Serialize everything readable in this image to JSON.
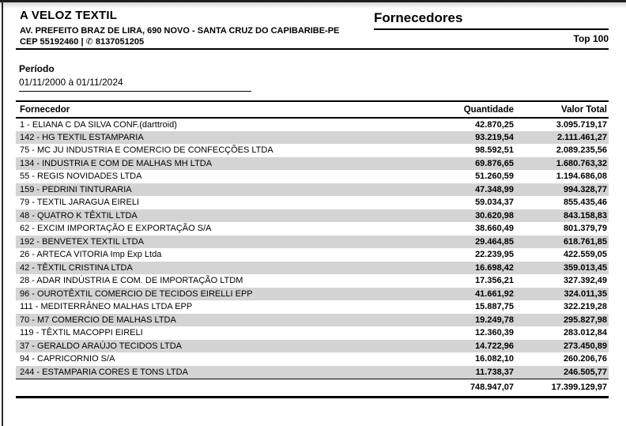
{
  "company": {
    "name": "A VELOZ TEXTIL",
    "address": "AV. PREFEITO BRAZ DE LIRA, 690 NOVO - SANTA CRUZ DO CAPIBARIBE-PE",
    "cep": "CEP 55192460",
    "separator": "|",
    "phone_icon": "✆",
    "phone": "8137051205"
  },
  "report": {
    "title": "Fornecedores",
    "badge": "Top 100"
  },
  "period": {
    "label": "Período",
    "value": "01/11/2000 à 01/11/2024"
  },
  "table": {
    "columns": [
      "Fornecedor",
      "Quantidade",
      "Valor Total"
    ],
    "rows": [
      {
        "name": "1 - ELIANA C DA SILVA CONF.(darttroid)",
        "quantity": "42.870,25",
        "total": "3.095.719,17"
      },
      {
        "name": "142 - HG TEXTIL ESTAMPARIA",
        "quantity": "93.219,54",
        "total": "2.111.461,27"
      },
      {
        "name": "75 - MC JU INDUSTRIA E COMERCIO DE CONFECÇÕES LTDA",
        "quantity": "98.592,51",
        "total": "2.089.235,56"
      },
      {
        "name": "134 - INDUSTRIA E COM DE MALHAS MH LTDA",
        "quantity": "69.876,65",
        "total": "1.680.763,32"
      },
      {
        "name": "55 - REGIS NOVIDADES LTDA",
        "quantity": "51.260,59",
        "total": "1.194.686,08"
      },
      {
        "name": "159 - PEDRINI TINTURARIA",
        "quantity": "47.348,99",
        "total": "994.328,77"
      },
      {
        "name": "79 - TEXTIL JARAGUA EIRELI",
        "quantity": "59.034,37",
        "total": "855.435,46"
      },
      {
        "name": "48 - QUATRO K TÊXTIL LTDA",
        "quantity": "30.620,98",
        "total": "843.158,83"
      },
      {
        "name": "62 - EXCIM IMPORTAÇÃO E EXPORTAÇÃO S/A",
        "quantity": "38.660,49",
        "total": "801.379,79"
      },
      {
        "name": "192 - BENVETEX TEXTIL LTDA",
        "quantity": "29.464,85",
        "total": "618.761,85"
      },
      {
        "name": "26 - ARTECA VITORIA Imp Exp Ltda",
        "quantity": "22.239,95",
        "total": "422.559,05"
      },
      {
        "name": "42 - TÊXTIL CRISTINA LTDA",
        "quantity": "16.698,42",
        "total": "359.013,45"
      },
      {
        "name": "28 - ADAR INDÚSTRIA E COM. DE IMPORTAÇÃO LTDM",
        "quantity": "17.356,21",
        "total": "327.392,49"
      },
      {
        "name": "96 - OUROTÊXTIL COMERCIO DE TECIDOS EIRELLI EPP",
        "quantity": "41.661,92",
        "total": "324.011,35"
      },
      {
        "name": "111 - MEDITERRÂNEO MALHAS LTDA EPP",
        "quantity": "15.887,75",
        "total": "322.219,28"
      },
      {
        "name": "70 - M7 COMERCIO DE MALHAS LTDA",
        "quantity": "19.249,78",
        "total": "295.827,98"
      },
      {
        "name": "119 - TÊXTIL MACOPPI EIRELI",
        "quantity": "12.360,39",
        "total": "283.012,84"
      },
      {
        "name": "37 - GERALDO ARAÚJO TECIDOS LTDA",
        "quantity": "14.722,96",
        "total": "273.450,89"
      },
      {
        "name": "94 - CAPRICORNIO S/A",
        "quantity": "16.082,10",
        "total": "260.206,76"
      },
      {
        "name": "244 - ESTAMPARIA CORES E TONS LTDA",
        "quantity": "11.738,37",
        "total": "246.505,77"
      }
    ],
    "totals": {
      "quantity": "748.947,07",
      "total": "17.399.129,97"
    }
  },
  "colors": {
    "zebra_row": "#d4d4d4",
    "text": "#000000",
    "rule": "#000000",
    "page_background": "#ffffff"
  }
}
